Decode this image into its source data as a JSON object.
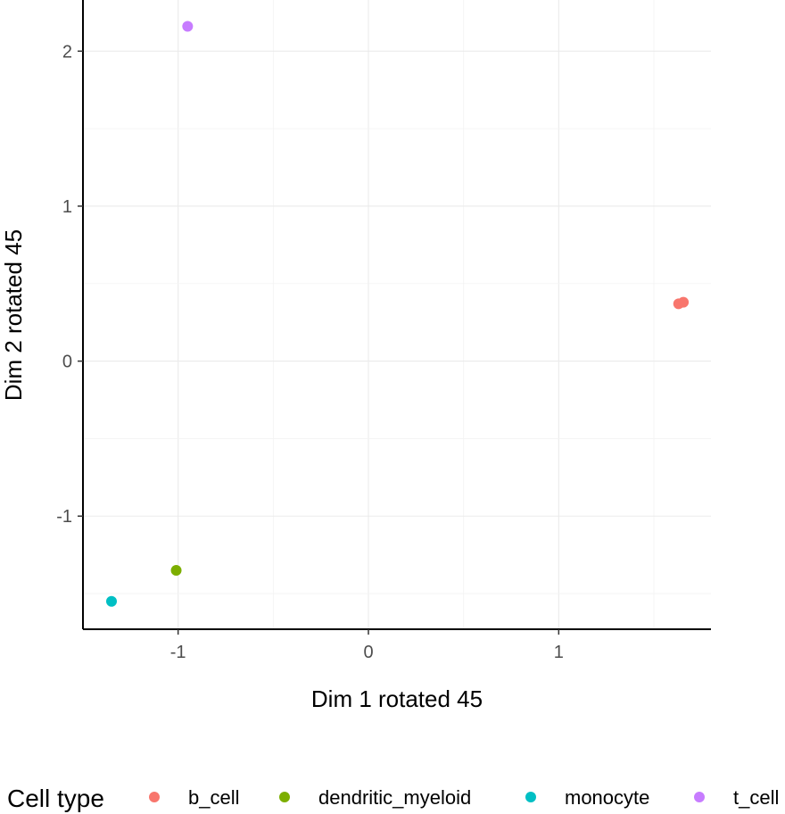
{
  "chart_data": {
    "type": "scatter",
    "xlabel": "Dim 1 rotated 45",
    "ylabel": "Dim 2 rotated 45",
    "xlim": [
      -1.5,
      1.8
    ],
    "ylim": [
      -1.73,
      2.33
    ],
    "x_ticks": [
      -1,
      0,
      1
    ],
    "y_ticks": [
      -1,
      0,
      1,
      2
    ],
    "x_tick_labels": [
      "-1",
      "0",
      "1"
    ],
    "y_tick_labels": [
      "-1",
      "0",
      "1",
      "2"
    ],
    "grid": true,
    "legend": {
      "title": "Cell type",
      "position": "bottom"
    },
    "series": [
      {
        "name": "b_cell",
        "color": "#F8766D",
        "points": [
          [
            1.63,
            0.37
          ],
          [
            1.655,
            0.38
          ]
        ]
      },
      {
        "name": "dendritic_myeloid",
        "color": "#7CAE00",
        "points": [
          [
            -1.01,
            -1.35
          ]
        ]
      },
      {
        "name": "monocyte",
        "color": "#00BFC4",
        "points": [
          [
            -1.35,
            -1.55
          ]
        ]
      },
      {
        "name": "t_cell",
        "color": "#C77CFF",
        "points": [
          [
            -0.95,
            2.16
          ]
        ]
      }
    ]
  }
}
